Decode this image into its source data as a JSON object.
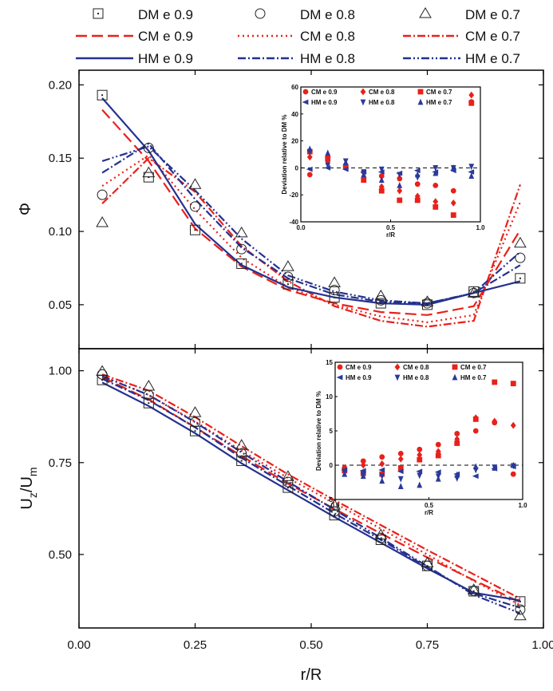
{
  "colors": {
    "dm": "#222222",
    "cm": "#e8211a",
    "hm": "#25318f",
    "cm_marker": "#e8211a",
    "hm_marker": "#2a3a9a"
  },
  "legend": [
    {
      "label": "DM  e 0.9",
      "kind": "marker",
      "marker": "square"
    },
    {
      "label": "DM  e 0.8",
      "kind": "marker",
      "marker": "circle"
    },
    {
      "label": "DM  e 0.7",
      "kind": "marker",
      "marker": "triangle"
    },
    {
      "label": "CM  e 0.9",
      "kind": "line",
      "color": "#e8211a",
      "dash": "14,6"
    },
    {
      "label": "CM  e 0.8",
      "kind": "line",
      "color": "#e8211a",
      "dash": "2,4"
    },
    {
      "label": "CM  e 0.7",
      "kind": "line",
      "color": "#e8211a",
      "dash": "10,3,2,3"
    },
    {
      "label": "HM  e 0.9",
      "kind": "line",
      "color": "#25318f",
      "dash": ""
    },
    {
      "label": "HM  e 0.8",
      "kind": "line",
      "color": "#25318f",
      "dash": "10,3,2,3"
    },
    {
      "label": "HM  e 0.7",
      "kind": "line",
      "color": "#25318f",
      "dash": "10,3,2,3,2,3"
    }
  ],
  "chart_data": [
    {
      "type": "line",
      "panel": "top",
      "ylabel": "Φ",
      "xlim": [
        0,
        1
      ],
      "ylim": [
        0.02,
        0.21
      ],
      "yticks": [
        0.05,
        0.1,
        0.15,
        0.2
      ],
      "yticklabels": [
        "0.05",
        "0.10",
        "0.15",
        "0.20"
      ],
      "markers": [
        {
          "name": "DM e 0.9",
          "marker": "square",
          "x": [
            0.05,
            0.15,
            0.25,
            0.35,
            0.45,
            0.55,
            0.65,
            0.75,
            0.85,
            0.95
          ],
          "y": [
            0.193,
            0.137,
            0.101,
            0.078,
            0.064,
            0.055,
            0.051,
            0.05,
            0.059,
            0.068
          ]
        },
        {
          "name": "DM e 0.8",
          "marker": "circle",
          "x": [
            0.05,
            0.15,
            0.25,
            0.35,
            0.45,
            0.55,
            0.65,
            0.75,
            0.85,
            0.95
          ],
          "y": [
            0.125,
            0.157,
            0.117,
            0.088,
            0.069,
            0.06,
            0.053,
            0.051,
            0.058,
            0.082
          ]
        },
        {
          "name": "DM e 0.7",
          "marker": "triangle",
          "x": [
            0.05,
            0.15,
            0.25,
            0.35,
            0.45,
            0.55,
            0.65,
            0.75,
            0.85,
            0.95
          ],
          "y": [
            0.106,
            0.14,
            0.132,
            0.099,
            0.076,
            0.065,
            0.056,
            0.052,
            0.058,
            0.092
          ]
        }
      ],
      "series": [
        {
          "name": "CM e 0.9",
          "x": [
            0.05,
            0.15,
            0.25,
            0.35,
            0.45,
            0.55,
            0.65,
            0.75,
            0.85,
            0.95
          ],
          "y": [
            0.183,
            0.148,
            0.102,
            0.076,
            0.06,
            0.051,
            0.045,
            0.043,
            0.049,
            0.101
          ]
        },
        {
          "name": "CM e 0.8",
          "x": [
            0.05,
            0.15,
            0.25,
            0.35,
            0.45,
            0.55,
            0.65,
            0.75,
            0.85,
            0.95
          ],
          "y": [
            0.131,
            0.152,
            0.115,
            0.082,
            0.062,
            0.05,
            0.042,
            0.038,
            0.043,
            0.12
          ]
        },
        {
          "name": "CM e 0.7",
          "x": [
            0.05,
            0.15,
            0.25,
            0.35,
            0.45,
            0.55,
            0.65,
            0.75,
            0.85,
            0.95
          ],
          "y": [
            0.119,
            0.15,
            0.127,
            0.09,
            0.066,
            0.049,
            0.039,
            0.035,
            0.039,
            0.132
          ]
        },
        {
          "name": "HM e 0.9",
          "x": [
            0.05,
            0.15,
            0.25,
            0.35,
            0.45,
            0.55,
            0.65,
            0.75,
            0.85,
            0.95
          ],
          "y": [
            0.191,
            0.155,
            0.105,
            0.077,
            0.062,
            0.055,
            0.051,
            0.05,
            0.058,
            0.066
          ]
        },
        {
          "name": "HM e 0.8",
          "x": [
            0.05,
            0.15,
            0.25,
            0.35,
            0.45,
            0.55,
            0.65,
            0.75,
            0.85,
            0.95
          ],
          "y": [
            0.14,
            0.16,
            0.122,
            0.089,
            0.068,
            0.057,
            0.052,
            0.051,
            0.058,
            0.077
          ]
        },
        {
          "name": "HM e 0.7",
          "x": [
            0.05,
            0.15,
            0.25,
            0.35,
            0.45,
            0.55,
            0.65,
            0.75,
            0.85,
            0.95
          ],
          "y": [
            0.148,
            0.158,
            0.128,
            0.095,
            0.07,
            0.059,
            0.053,
            0.051,
            0.058,
            0.086
          ]
        }
      ],
      "inset": {
        "type": "scatter",
        "ylabel": "Deviation relative to DM %",
        "xlabel": "r/R",
        "xlim": [
          0,
          1
        ],
        "ylim": [
          -40,
          60
        ],
        "xticks": [
          0.0,
          0.5,
          1.0
        ],
        "xticklabels": [
          "0.0",
          "0.5",
          "1.0"
        ],
        "yticks": [
          -40,
          -20,
          0,
          20,
          40,
          60
        ],
        "yticklabels": [
          "-40",
          "-20",
          "0",
          "20",
          "40",
          "60"
        ],
        "legend": [
          "CM e 0.9",
          "CM e 0.8",
          "CM e 0.7",
          "HM e 0.9",
          "HM e 0.8",
          "HM e 0.7"
        ],
        "series": [
          {
            "name": "CM e 0.9",
            "marker": "circle",
            "x": [
              0.05,
              0.15,
              0.25,
              0.35,
              0.45,
              0.55,
              0.65,
              0.75,
              0.85,
              0.95
            ],
            "y": [
              -5,
              8,
              1,
              -3,
              -6,
              -8,
              -12,
              -13,
              -17,
              49
            ]
          },
          {
            "name": "CM e 0.8",
            "marker": "diamond",
            "x": [
              0.05,
              0.15,
              0.25,
              0.35,
              0.45,
              0.55,
              0.65,
              0.75,
              0.85,
              0.95
            ],
            "y": [
              8,
              5,
              2,
              -7,
              -14,
              -17,
              -21,
              -25,
              -26,
              54
            ]
          },
          {
            "name": "CM e 0.7",
            "marker": "square",
            "x": [
              0.05,
              0.15,
              0.25,
              0.35,
              0.45,
              0.55,
              0.65,
              0.75,
              0.85,
              0.95
            ],
            "y": [
              12,
              7,
              1,
              -9,
              -17,
              -24,
              -24,
              -29,
              -35,
              48
            ]
          },
          {
            "name": "HM e 0.9",
            "marker": "triangle-left",
            "x": [
              0.05,
              0.15,
              0.25,
              0.35,
              0.45,
              0.55,
              0.65,
              0.75,
              0.85,
              0.95
            ],
            "y": [
              -1,
              0,
              -1,
              -3,
              -3,
              -4,
              -2,
              -3,
              -2,
              -3
            ]
          },
          {
            "name": "HM e 0.8",
            "marker": "triangle-down",
            "x": [
              0.05,
              0.15,
              0.25,
              0.35,
              0.45,
              0.55,
              0.65,
              0.75,
              0.85,
              0.95
            ],
            "y": [
              12,
              2,
              5,
              -3,
              -1,
              -5,
              -7,
              0,
              0,
              1
            ]
          },
          {
            "name": "HM e 0.7",
            "marker": "triangle-up",
            "x": [
              0.05,
              0.15,
              0.25,
              0.35,
              0.45,
              0.55,
              0.65,
              0.75,
              0.85,
              0.95
            ],
            "y": [
              14,
              11,
              4,
              -5,
              -9,
              -13,
              -5,
              -4,
              0,
              -6
            ]
          }
        ]
      }
    },
    {
      "type": "line",
      "panel": "bottom",
      "ylabel": "U",
      "ylabel_sub1": "z",
      "ylabel_mid": "/U",
      "ylabel_sub2": "m",
      "xlabel": "r/R",
      "xlim": [
        0,
        1
      ],
      "ylim": [
        0.3,
        1.06
      ],
      "xticks": [
        0.0,
        0.25,
        0.5,
        0.75,
        1.0
      ],
      "xticklabels": [
        "0.00",
        "0.25",
        "0.50",
        "0.75",
        "1.00"
      ],
      "yticks": [
        0.5,
        0.75,
        1.0
      ],
      "yticklabels": [
        "0.50",
        "0.75",
        "1.00"
      ],
      "markers": [
        {
          "name": "DM e 0.9",
          "marker": "square",
          "x": [
            0.05,
            0.15,
            0.25,
            0.35,
            0.45,
            0.55,
            0.65,
            0.75,
            0.85,
            0.95
          ],
          "y": [
            0.975,
            0.912,
            0.836,
            0.755,
            0.682,
            0.607,
            0.54,
            0.469,
            0.4,
            0.372
          ]
        },
        {
          "name": "DM e 0.8",
          "marker": "circle",
          "x": [
            0.05,
            0.15,
            0.25,
            0.35,
            0.45,
            0.55,
            0.65,
            0.75,
            0.85,
            0.95
          ],
          "y": [
            0.99,
            0.934,
            0.86,
            0.775,
            0.697,
            0.617,
            0.545,
            0.469,
            0.401,
            0.35
          ]
        },
        {
          "name": "DM e 0.7",
          "marker": "triangle",
          "x": [
            0.05,
            0.15,
            0.25,
            0.35,
            0.45,
            0.55,
            0.65,
            0.75,
            0.85,
            0.95
          ],
          "y": [
            0.998,
            0.958,
            0.886,
            0.797,
            0.712,
            0.634,
            0.553,
            0.477,
            0.404,
            0.333
          ]
        }
      ],
      "series": [
        {
          "name": "CM e 0.9",
          "x": [
            0.05,
            0.15,
            0.25,
            0.35,
            0.45,
            0.55,
            0.65,
            0.75,
            0.85,
            0.95
          ],
          "y": [
            0.982,
            0.922,
            0.846,
            0.768,
            0.693,
            0.624,
            0.557,
            0.492,
            0.43,
            0.37
          ]
        },
        {
          "name": "CM e 0.8",
          "x": [
            0.05,
            0.15,
            0.25,
            0.35,
            0.45,
            0.55,
            0.65,
            0.75,
            0.85,
            0.95
          ],
          "y": [
            0.986,
            0.934,
            0.862,
            0.782,
            0.708,
            0.64,
            0.57,
            0.5,
            0.428,
            0.362
          ]
        },
        {
          "name": "CM e 0.7",
          "x": [
            0.05,
            0.15,
            0.25,
            0.35,
            0.45,
            0.55,
            0.65,
            0.75,
            0.85,
            0.95
          ],
          "y": [
            0.99,
            0.946,
            0.874,
            0.795,
            0.718,
            0.648,
            0.58,
            0.512,
            0.446,
            0.38
          ]
        },
        {
          "name": "HM e 0.9",
          "x": [
            0.05,
            0.15,
            0.25,
            0.35,
            0.45,
            0.55,
            0.65,
            0.75,
            0.85,
            0.95
          ],
          "y": [
            0.968,
            0.904,
            0.83,
            0.748,
            0.675,
            0.602,
            0.532,
            0.462,
            0.396,
            0.375
          ]
        },
        {
          "name": "HM e 0.8",
          "x": [
            0.05,
            0.15,
            0.25,
            0.35,
            0.45,
            0.55,
            0.65,
            0.75,
            0.85,
            0.95
          ],
          "y": [
            0.978,
            0.92,
            0.846,
            0.763,
            0.687,
            0.612,
            0.54,
            0.465,
            0.394,
            0.355
          ]
        },
        {
          "name": "HM e 0.7",
          "x": [
            0.05,
            0.15,
            0.25,
            0.35,
            0.45,
            0.55,
            0.65,
            0.75,
            0.85,
            0.95
          ],
          "y": [
            0.985,
            0.934,
            0.86,
            0.778,
            0.698,
            0.622,
            0.545,
            0.468,
            0.39,
            0.34
          ]
        }
      ],
      "inset": {
        "type": "scatter",
        "ylabel": "Deviation relative to DM %",
        "xlabel": "r/R",
        "xlim": [
          0,
          1
        ],
        "ylim": [
          -5,
          15
        ],
        "xticks": [
          0.0,
          0.5,
          1.0
        ],
        "xticklabels": [
          "0.0",
          "0.5",
          "1.0"
        ],
        "yticks": [
          -5,
          0,
          5,
          10,
          15
        ],
        "yticklabels": [
          "-5",
          "0",
          "5",
          "10",
          "15"
        ],
        "legend": [
          "CM e 0.9",
          "CM e 0.8",
          "CM e 0.7",
          "HM e 0.9",
          "HM e 0.8",
          "HM e 0.7"
        ],
        "series": [
          {
            "name": "CM e 0.9",
            "marker": "circle",
            "x": [
              0.05,
              0.15,
              0.25,
              0.35,
              0.45,
              0.55,
              0.65,
              0.75,
              0.85,
              0.95
            ],
            "y": [
              -0.4,
              0.6,
              1.2,
              1.7,
              2.3,
              3.0,
              4.6,
              5.0,
              6.2,
              -1.3
            ]
          },
          {
            "name": "CM e 0.8",
            "marker": "diamond",
            "x": [
              0.05,
              0.15,
              0.25,
              0.35,
              0.45,
              0.55,
              0.65,
              0.75,
              0.85,
              0.95
            ],
            "y": [
              -0.4,
              0.0,
              0.2,
              0.9,
              1.5,
              2.0,
              3.8,
              6.9,
              6.4,
              5.8
            ]
          },
          {
            "name": "CM e 0.7",
            "marker": "square",
            "x": [
              0.05,
              0.15,
              0.25,
              0.35,
              0.45,
              0.55,
              0.65,
              0.75,
              0.85,
              0.95
            ],
            "y": [
              -0.8,
              -1.2,
              -1.3,
              -0.4,
              0.8,
              1.4,
              3.2,
              6.7,
              12.1,
              11.9
            ]
          },
          {
            "name": "HM e 0.9",
            "marker": "triangle-left",
            "x": [
              0.05,
              0.15,
              0.25,
              0.35,
              0.45,
              0.55,
              0.65,
              0.75,
              0.85,
              0.95
            ],
            "y": [
              -0.7,
              -0.8,
              -0.7,
              -0.9,
              -0.9,
              -1.0,
              -1.3,
              -1.6,
              -0.5,
              -0.2
            ]
          },
          {
            "name": "HM e 0.8",
            "marker": "triangle-down",
            "x": [
              0.05,
              0.15,
              0.25,
              0.35,
              0.45,
              0.55,
              0.65,
              0.75,
              0.85,
              0.95
            ],
            "y": [
              -0.9,
              -1.4,
              -1.6,
              -2.0,
              -1.5,
              -1.6,
              -1.9,
              -0.7,
              -0.3,
              -0.1
            ]
          },
          {
            "name": "HM e 0.7",
            "marker": "triangle-up",
            "x": [
              0.05,
              0.15,
              0.25,
              0.35,
              0.45,
              0.55,
              0.65,
              0.75,
              0.85,
              0.95
            ],
            "y": [
              -1.3,
              -1.6,
              -2.3,
              -3.1,
              -2.9,
              -2.0,
              -1.4,
              -0.2,
              -0.4,
              0.0
            ]
          }
        ]
      }
    }
  ]
}
